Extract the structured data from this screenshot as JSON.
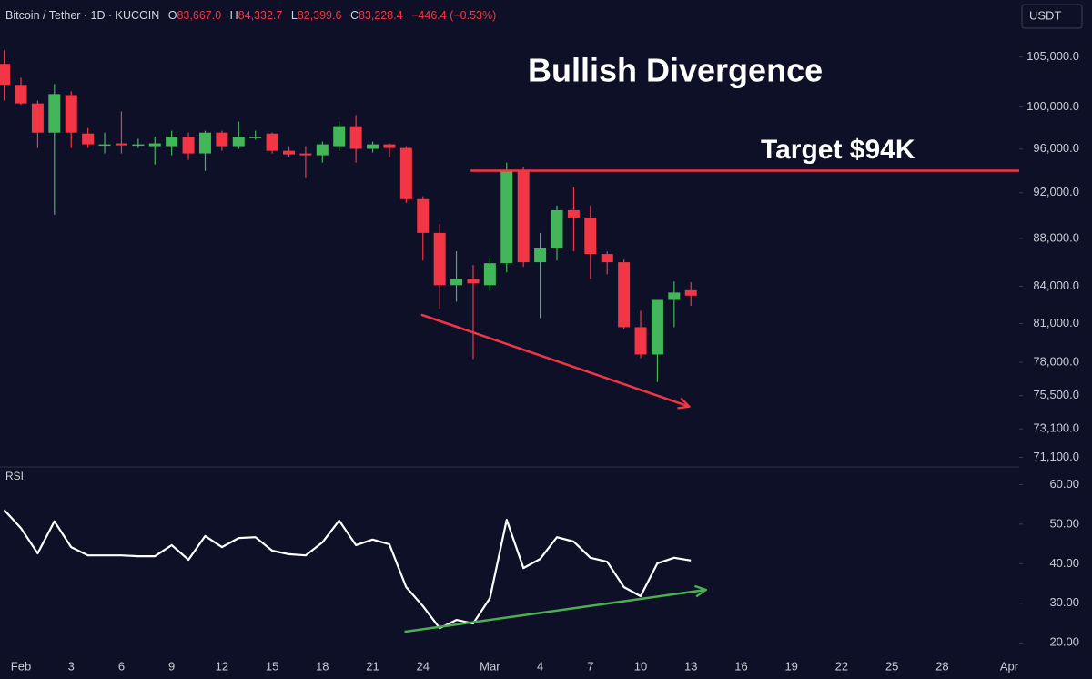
{
  "header": {
    "symbol": "Bitcoin / Tether · 1D · KUCOIN",
    "quote": [
      {
        "label": "O",
        "value": "83,667.0"
      },
      {
        "label": "H",
        "value": "84,332.7"
      },
      {
        "label": "L",
        "value": "82,399.6"
      },
      {
        "label": "C",
        "value": "83,228.4"
      }
    ],
    "change": "−446.4 (−0.53%)",
    "currency": "USDT"
  },
  "chart_data": [
    {
      "type": "candlestick",
      "log": true,
      "up_color": "#43b65a",
      "down_color": "#f23645",
      "xlim": [
        -1.25,
        59.6
      ],
      "ylim": [
        70500,
        111000
      ],
      "yticks": [
        {
          "value": 105000,
          "label": "105,000.0"
        },
        {
          "value": 100000,
          "label": "100,000.0"
        },
        {
          "value": 96000,
          "label": "96,000.0"
        },
        {
          "value": 92000,
          "label": "92,000.0"
        },
        {
          "value": 88000,
          "label": "88,000.0"
        },
        {
          "value": 84000,
          "label": "84,000.0"
        },
        {
          "value": 81000,
          "label": "81,000.0"
        },
        {
          "value": 78000,
          "label": "78,000.0"
        },
        {
          "value": 75500,
          "label": "75,500.0"
        },
        {
          "value": 73100,
          "label": "73,100.0"
        },
        {
          "value": 71100,
          "label": "71,100.0"
        }
      ],
      "x": [
        -1,
        0,
        1,
        2,
        3,
        4,
        5,
        6,
        7,
        8,
        9,
        10,
        11,
        12,
        13,
        14,
        15,
        16,
        17,
        18,
        19,
        20,
        21,
        22,
        23,
        24,
        25,
        26,
        27,
        28,
        29,
        30,
        31,
        32,
        33,
        34,
        35,
        36,
        37,
        38,
        39,
        40
      ],
      "open": [
        104300,
        102190,
        100360,
        97550,
        101180,
        97460,
        96440,
        96530,
        96440,
        96270,
        96270,
        97150,
        95590,
        97550,
        96270,
        97150,
        97460,
        95840,
        95590,
        95420,
        96270,
        98160,
        96020,
        96440,
        96100,
        91430,
        88470,
        84080,
        84600,
        84080,
        85900,
        93980,
        85980,
        87140,
        90450,
        89810,
        86670,
        85980,
        80710,
        78590,
        82880,
        83667
      ],
      "high": [
        105690,
        102900,
        100650,
        102270,
        101550,
        97990,
        97550,
        99580,
        96970,
        97150,
        97730,
        97550,
        97730,
        97730,
        98610,
        97730,
        97550,
        96270,
        96270,
        96700,
        98610,
        99230,
        96700,
        96530,
        96270,
        91680,
        89250,
        86900,
        85750,
        86280,
        94740,
        94320,
        88470,
        90860,
        92490,
        90860,
        86900,
        86200,
        82010,
        82880,
        84380,
        84332.7
      ],
      "low": [
        100650,
        100210,
        96100,
        90050,
        96100,
        96100,
        95590,
        95590,
        96100,
        94570,
        95420,
        95000,
        93980,
        95840,
        96020,
        96870,
        95590,
        95250,
        93320,
        94740,
        95840,
        94740,
        95680,
        95250,
        91110,
        86120,
        82150,
        82740,
        78240,
        83630,
        85140,
        85590,
        81430,
        86120,
        86900,
        84600,
        84980,
        80560,
        78310,
        76510,
        80710,
        82399.6
      ],
      "close": [
        102190,
        100360,
        97550,
        101280,
        97550,
        96440,
        96440,
        96350,
        96440,
        96530,
        97150,
        95590,
        97550,
        96270,
        97150,
        97150,
        95840,
        95500,
        95420,
        96440,
        98160,
        96020,
        96440,
        96100,
        91430,
        88470,
        84080,
        84600,
        84230,
        85900,
        93980,
        85980,
        87140,
        90450,
        89810,
        86670,
        85980,
        80710,
        78590,
        82880,
        83480,
        83228.4
      ],
      "annotations": [
        {
          "text": "Bullish Divergence"
        },
        {
          "text": "Target $94K",
          "value": 94000,
          "x_start": 26.85,
          "color": "#f23645"
        }
      ],
      "trend_line": {
        "x": [
          23.9,
          39.9
        ],
        "y": [
          81700,
          74700
        ],
        "color": "#f23645"
      }
    },
    {
      "type": "line",
      "title": "RSI",
      "color": "#ffffff",
      "xlim": [
        -1.25,
        59.6
      ],
      "ylim": [
        15,
        64
      ],
      "yticks": [
        {
          "value": 60,
          "label": "60.00"
        },
        {
          "value": 50,
          "label": "50.00"
        },
        {
          "value": 40,
          "label": "40.00"
        },
        {
          "value": 30,
          "label": "30.00"
        },
        {
          "value": 20,
          "label": "20.00"
        }
      ],
      "xticks": [
        {
          "value": 0,
          "label": "Feb"
        },
        3,
        6,
        9,
        12,
        15,
        18,
        21,
        24,
        {
          "value": 28,
          "label": "Mar"
        },
        {
          "value": 31,
          "label": "4"
        },
        {
          "value": 34,
          "label": "7"
        },
        {
          "value": 37,
          "label": "10"
        },
        {
          "value": 40,
          "label": "13"
        },
        {
          "value": 43,
          "label": "16"
        },
        {
          "value": 46,
          "label": "19"
        },
        {
          "value": 49,
          "label": "22"
        },
        {
          "value": 52,
          "label": "25"
        },
        {
          "value": 55,
          "label": "28"
        },
        {
          "value": 59,
          "label": "Apr"
        }
      ],
      "x": [
        -1,
        0,
        1,
        2,
        3,
        4,
        5,
        6,
        7,
        8,
        9,
        10,
        11,
        12,
        13,
        14,
        15,
        16,
        17,
        18,
        19,
        20,
        21,
        22,
        23,
        24,
        25,
        26,
        27,
        28,
        29,
        30,
        31,
        32,
        33,
        34,
        35,
        36,
        37,
        38,
        39,
        40
      ],
      "values": [
        53.6,
        49,
        42.6,
        50.7,
        44.2,
        42.1,
        42.1,
        42.1,
        41.9,
        41.9,
        44.7,
        41,
        47,
        44.2,
        46.5,
        46.7,
        43.3,
        42.4,
        42.1,
        45.4,
        50.9,
        44.7,
        46.1,
        44.9,
        34.1,
        29.3,
        23.7,
        25.8,
        24.9,
        31.3,
        51.1,
        38.9,
        41.2,
        46.7,
        45.6,
        41.5,
        40.5,
        34.1,
        31.8,
        40.1,
        41.5,
        40.8
      ],
      "trend_line": {
        "x": [
          22.9,
          40.9
        ],
        "y": [
          22.8,
          33.4
        ],
        "color": "#4caf50"
      }
    }
  ]
}
